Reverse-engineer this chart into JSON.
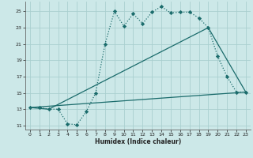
{
  "bg_color": "#cce8e8",
  "line_color": "#1a6b6b",
  "grid_color": "#aacfcf",
  "xlabel": "Humidex (Indice chaleur)",
  "xlim": [
    -0.5,
    23.5
  ],
  "ylim": [
    10.5,
    26.2
  ],
  "yticks": [
    11,
    13,
    15,
    17,
    19,
    21,
    23,
    25
  ],
  "xticks": [
    0,
    1,
    2,
    3,
    4,
    5,
    6,
    7,
    8,
    9,
    10,
    11,
    12,
    13,
    14,
    15,
    16,
    17,
    18,
    19,
    20,
    21,
    22,
    23
  ],
  "line1_x": [
    0,
    1,
    2,
    3,
    4,
    5,
    6,
    7,
    8,
    9,
    10,
    11,
    12,
    13,
    14,
    15,
    16,
    17,
    18,
    19,
    20,
    21,
    22,
    23
  ],
  "line1_y": [
    13.2,
    13.2,
    13.0,
    13.0,
    11.2,
    11.1,
    12.7,
    15.0,
    21.0,
    25.0,
    23.2,
    24.7,
    23.5,
    24.9,
    25.6,
    24.8,
    24.9,
    24.9,
    24.2,
    23.0,
    19.5,
    17.0,
    15.1,
    15.1
  ],
  "line2_x": [
    0,
    2,
    19,
    23
  ],
  "line2_y": [
    13.2,
    13.0,
    23.0,
    15.1
  ],
  "line3_x": [
    0,
    23
  ],
  "line3_y": [
    13.2,
    15.1
  ]
}
